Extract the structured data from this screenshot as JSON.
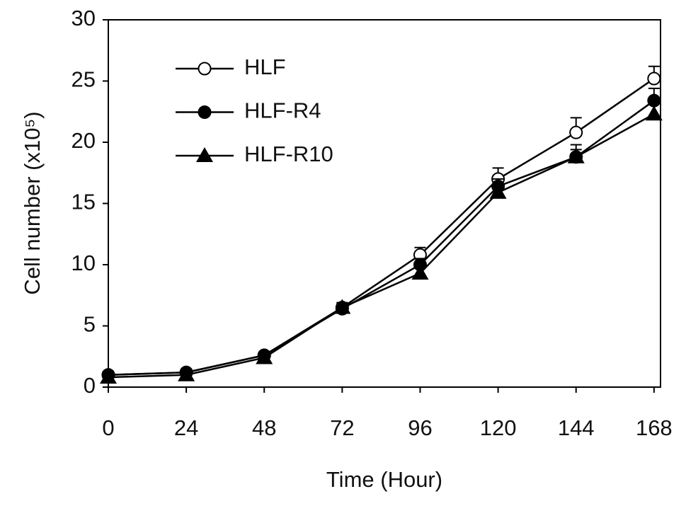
{
  "chart_data": {
    "type": "line",
    "x_label": "Time (Hour)",
    "y_label": "Cell number (x10⁵)",
    "x": [
      0,
      24,
      48,
      72,
      96,
      120,
      144,
      168
    ],
    "xlim": [
      0,
      170
    ],
    "xticks": [
      0,
      24,
      48,
      72,
      96,
      120,
      144,
      168
    ],
    "ylim": [
      0,
      30
    ],
    "yticks": [
      0,
      5,
      10,
      15,
      20,
      25,
      30
    ],
    "legend": "upper-left",
    "series": [
      {
        "name": "HLF",
        "color": "#000000",
        "marker": "open-circle",
        "values": [
          1.0,
          1.2,
          2.6,
          6.5,
          10.8,
          17.0,
          20.8,
          25.2
        ],
        "errors": [
          0.1,
          0.1,
          0.2,
          0.4,
          0.6,
          0.9,
          1.2,
          1.0
        ]
      },
      {
        "name": "HLF-R4",
        "color": "#000000",
        "marker": "circle",
        "values": [
          1.0,
          1.2,
          2.6,
          6.4,
          10.0,
          16.4,
          18.8,
          23.4
        ],
        "errors": [
          0.1,
          0.1,
          0.2,
          0.3,
          0.5,
          0.6,
          0.6,
          1.0
        ]
      },
      {
        "name": "HLF-R10",
        "color": "#000000",
        "marker": "triangle",
        "values": [
          0.8,
          1.0,
          2.4,
          6.5,
          9.3,
          15.9,
          18.8,
          22.3
        ],
        "errors": [
          0.1,
          0.1,
          0.2,
          0.3,
          0.5,
          0.5,
          1.0,
          1.0
        ]
      }
    ]
  }
}
